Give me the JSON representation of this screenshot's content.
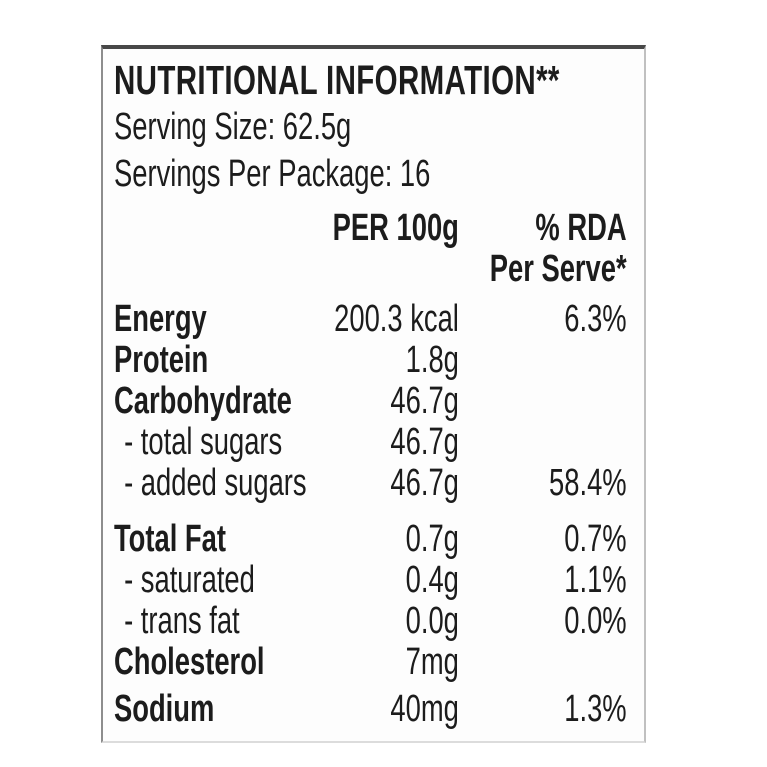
{
  "label": {
    "title": "NUTRITIONAL INFORMATION**",
    "serving_size": "Serving Size: 62.5g",
    "servings_per_package": "Servings Per Package: 16",
    "columns": {
      "per_100g": "PER 100g",
      "rda_line1": "% RDA",
      "rda_line2": "Per Serve*"
    },
    "rows": [
      {
        "label": "Energy",
        "per_100g": "200.3 kcal",
        "rda": "6.3%"
      },
      {
        "label": "Protein",
        "per_100g": "1.8g",
        "rda": ""
      },
      {
        "label": "Carbohydrate",
        "per_100g": "46.7g",
        "rda": ""
      },
      {
        "label": "- total sugars",
        "per_100g": "46.7g",
        "rda": ""
      },
      {
        "label": "- added sugars",
        "per_100g": "46.7g",
        "rda": "58.4%"
      },
      {
        "label": "Total Fat",
        "per_100g": "0.7g",
        "rda": "0.7%"
      },
      {
        "label": "- saturated",
        "per_100g": "0.4g",
        "rda": "1.1%"
      },
      {
        "label": "- trans fat",
        "per_100g": "0.0g",
        "rda": "0.0%"
      },
      {
        "label": "Cholesterol",
        "per_100g": "7mg",
        "rda": ""
      },
      {
        "label": "Sodium",
        "per_100g": "40mg",
        "rda": "1.3%"
      }
    ],
    "colors": {
      "text": "#1c1c1c",
      "background": "#fdfdfd",
      "border_top": "#484848",
      "border_left": "#8d8d8d",
      "border_right": "#c0c0c0",
      "border_bottom": "#dcdcdc"
    }
  }
}
